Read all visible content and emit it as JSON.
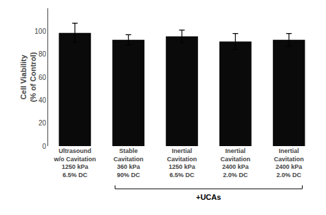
{
  "chart_data": {
    "type": "bar",
    "categories": [
      "Ultrasound\nw/o Cavitation\n1250 kPa\n6.5% DC",
      "Stable\nCavitation\n360 kPa\n90% DC",
      "Inertial\nCavitation\n1250 kPa\n6.5% DC",
      "Inertial\nCavitation\n2400 kPa\n2.0% DC",
      "Inertial\nCavitation\n2400 kPa\n2.0% DC"
    ],
    "values": [
      98.5,
      92.5,
      95.5,
      91.0,
      92.5
    ],
    "errors": [
      8.5,
      4.5,
      5.5,
      7.0,
      5.5
    ],
    "color": "#0a0a0a",
    "ylabel": "Cell Viability\n(% of Control)",
    "ylim": [
      0,
      120
    ],
    "yticks": [
      0,
      20,
      40,
      60,
      80,
      100
    ],
    "grid": false,
    "annotations": [
      {
        "text": "+UCAs",
        "span": [
          1,
          4
        ]
      }
    ]
  }
}
